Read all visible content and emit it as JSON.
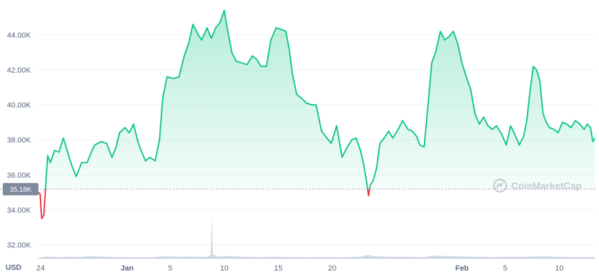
{
  "chart_data": {
    "type": "area",
    "currency_label": "USD",
    "watermark": "CoinMarketCap",
    "baseline_label": "35.18K",
    "baseline_value": 35180,
    "ylim": [
      31000,
      45600
    ],
    "y_ticks": [
      {
        "value": 32000,
        "label": "32.00K"
      },
      {
        "value": 34000,
        "label": "34.00K"
      },
      {
        "value": 36000,
        "label": "36.00K"
      },
      {
        "value": 38000,
        "label": "38.00K"
      },
      {
        "value": 40000,
        "label": "40.00K"
      },
      {
        "value": 42000,
        "label": "42.00K"
      },
      {
        "value": 44000,
        "label": "44.00K"
      }
    ],
    "x_ticks": [
      {
        "day": 0,
        "label": "24",
        "bold": false
      },
      {
        "day": 8,
        "label": "Jan",
        "bold": true
      },
      {
        "day": 12,
        "label": "5",
        "bold": false
      },
      {
        "day": 17,
        "label": "10",
        "bold": false
      },
      {
        "day": 22,
        "label": "15",
        "bold": false
      },
      {
        "day": 27,
        "label": "20",
        "bold": false
      },
      {
        "day": 39,
        "label": "Feb",
        "bold": true
      },
      {
        "day": 43,
        "label": "5",
        "bold": false
      },
      {
        "day": 48,
        "label": "10",
        "bold": false
      }
    ],
    "colors": {
      "up_line": "#16c784",
      "down_line": "#ea3943",
      "area_top": "#16c784",
      "baseline": "#7b8494",
      "volume": "#cfd6e4",
      "label_bg": "#808a9d"
    },
    "price": [
      [
        -0.2,
        35000
      ],
      [
        -0.05,
        34900
      ],
      [
        0.1,
        33500
      ],
      [
        0.3,
        33700
      ],
      [
        0.5,
        35700
      ],
      [
        0.65,
        37100
      ],
      [
        0.9,
        36700
      ],
      [
        1.3,
        37400
      ],
      [
        1.7,
        37300
      ],
      [
        2.1,
        38100
      ],
      [
        2.4,
        37500
      ],
      [
        2.9,
        36500
      ],
      [
        3.3,
        35900
      ],
      [
        3.8,
        36700
      ],
      [
        4.3,
        36700
      ],
      [
        4.7,
        37300
      ],
      [
        5.0,
        37700
      ],
      [
        5.6,
        37900
      ],
      [
        6.1,
        37800
      ],
      [
        6.6,
        37000
      ],
      [
        7.0,
        37600
      ],
      [
        7.3,
        38400
      ],
      [
        7.8,
        38700
      ],
      [
        8.2,
        38400
      ],
      [
        8.6,
        38900
      ],
      [
        9.0,
        37900
      ],
      [
        9.3,
        37400
      ],
      [
        9.7,
        36800
      ],
      [
        10.1,
        37000
      ],
      [
        10.6,
        36800
      ],
      [
        11.0,
        38000
      ],
      [
        11.3,
        40400
      ],
      [
        11.7,
        41600
      ],
      [
        12.3,
        41500
      ],
      [
        12.8,
        41600
      ],
      [
        13.3,
        42800
      ],
      [
        13.7,
        43500
      ],
      [
        14.1,
        44600
      ],
      [
        14.5,
        44100
      ],
      [
        14.9,
        43700
      ],
      [
        15.4,
        44400
      ],
      [
        15.8,
        43800
      ],
      [
        16.2,
        44400
      ],
      [
        16.6,
        44700
      ],
      [
        17.0,
        45400
      ],
      [
        17.3,
        44300
      ],
      [
        17.7,
        43000
      ],
      [
        18.1,
        42500
      ],
      [
        18.6,
        42400
      ],
      [
        19.1,
        42300
      ],
      [
        19.6,
        42800
      ],
      [
        20.0,
        42600
      ],
      [
        20.4,
        42200
      ],
      [
        20.9,
        42200
      ],
      [
        21.3,
        43700
      ],
      [
        21.8,
        44400
      ],
      [
        22.3,
        44300
      ],
      [
        22.7,
        44200
      ],
      [
        23.0,
        43200
      ],
      [
        23.3,
        41800
      ],
      [
        23.7,
        40600
      ],
      [
        24.1,
        40400
      ],
      [
        24.6,
        40100
      ],
      [
        25.1,
        40000
      ],
      [
        25.5,
        40000
      ],
      [
        26.0,
        38500
      ],
      [
        26.5,
        38100
      ],
      [
        26.9,
        37800
      ],
      [
        27.4,
        38800
      ],
      [
        27.9,
        37000
      ],
      [
        28.3,
        37500
      ],
      [
        28.8,
        38000
      ],
      [
        29.2,
        38100
      ],
      [
        29.6,
        37400
      ],
      [
        29.9,
        36600
      ],
      [
        30.2,
        35500
      ],
      [
        30.35,
        34800
      ],
      [
        30.5,
        35400
      ],
      [
        30.8,
        35700
      ],
      [
        31.1,
        36400
      ],
      [
        31.4,
        37800
      ],
      [
        31.8,
        38100
      ],
      [
        32.2,
        38500
      ],
      [
        32.6,
        38100
      ],
      [
        33.1,
        38600
      ],
      [
        33.5,
        39100
      ],
      [
        34.0,
        38600
      ],
      [
        34.4,
        38500
      ],
      [
        34.8,
        38200
      ],
      [
        35.1,
        37700
      ],
      [
        35.5,
        37600
      ],
      [
        35.9,
        40300
      ],
      [
        36.2,
        42400
      ],
      [
        36.6,
        43100
      ],
      [
        37.0,
        44200
      ],
      [
        37.4,
        43700
      ],
      [
        37.8,
        43900
      ],
      [
        38.2,
        44200
      ],
      [
        38.6,
        43500
      ],
      [
        39.0,
        42400
      ],
      [
        39.4,
        41600
      ],
      [
        39.8,
        40900
      ],
      [
        40.2,
        39500
      ],
      [
        40.6,
        38900
      ],
      [
        41.0,
        39300
      ],
      [
        41.4,
        38800
      ],
      [
        41.8,
        38600
      ],
      [
        42.2,
        38800
      ],
      [
        42.7,
        38300
      ],
      [
        43.1,
        37700
      ],
      [
        43.5,
        38800
      ],
      [
        43.9,
        38300
      ],
      [
        44.3,
        37700
      ],
      [
        44.7,
        38200
      ],
      [
        45.0,
        39100
      ],
      [
        45.3,
        40800
      ],
      [
        45.6,
        42200
      ],
      [
        45.9,
        42000
      ],
      [
        46.2,
        41400
      ],
      [
        46.5,
        39500
      ],
      [
        46.8,
        39000
      ],
      [
        47.1,
        38700
      ],
      [
        47.5,
        38600
      ],
      [
        47.9,
        38400
      ],
      [
        48.3,
        39000
      ],
      [
        48.7,
        38900
      ],
      [
        49.1,
        38700
      ],
      [
        49.5,
        39100
      ],
      [
        49.9,
        38900
      ],
      [
        50.3,
        38600
      ],
      [
        50.6,
        38900
      ],
      [
        50.9,
        38700
      ],
      [
        51.1,
        37900
      ],
      [
        51.3,
        38100
      ]
    ],
    "volume": [
      [
        -0.2,
        0.7
      ],
      [
        0.5,
        1.6
      ],
      [
        1.5,
        1.2
      ],
      [
        2.5,
        1.4
      ],
      [
        3.5,
        1.3
      ],
      [
        4.5,
        1.8
      ],
      [
        5.5,
        1.6
      ],
      [
        6.5,
        1.3
      ],
      [
        7.5,
        1.2
      ],
      [
        8.5,
        1.1
      ],
      [
        9.5,
        1.0
      ],
      [
        10.5,
        1.2
      ],
      [
        11.5,
        1.8
      ],
      [
        12.5,
        1.5
      ],
      [
        13.5,
        1.6
      ],
      [
        14.5,
        1.5
      ],
      [
        15.5,
        1.4
      ],
      [
        15.75,
        3.0
      ],
      [
        15.85,
        28.0
      ],
      [
        15.95,
        3.0
      ],
      [
        16.5,
        1.6
      ],
      [
        17.5,
        2.0
      ],
      [
        18.5,
        1.5
      ],
      [
        19.5,
        1.3
      ],
      [
        20.5,
        1.2
      ],
      [
        21.5,
        1.4
      ],
      [
        22.5,
        1.3
      ],
      [
        23.5,
        1.2
      ],
      [
        24.5,
        1.1
      ],
      [
        25.5,
        1.2
      ],
      [
        26.5,
        1.3
      ],
      [
        27.5,
        1.1
      ],
      [
        28.5,
        1.2
      ],
      [
        29.5,
        1.4
      ],
      [
        30.2,
        2.6
      ],
      [
        30.8,
        1.9
      ],
      [
        31.5,
        1.6
      ],
      [
        32.5,
        1.5
      ],
      [
        33.5,
        1.4
      ],
      [
        34.5,
        1.3
      ],
      [
        35.5,
        1.2
      ],
      [
        36.5,
        2.2
      ],
      [
        37.5,
        1.9
      ],
      [
        38.5,
        1.7
      ],
      [
        39.5,
        1.6
      ],
      [
        40.5,
        1.4
      ],
      [
        41.5,
        1.3
      ],
      [
        42.5,
        1.3
      ],
      [
        43.5,
        1.5
      ],
      [
        44.5,
        1.4
      ],
      [
        45.5,
        1.6
      ],
      [
        46.5,
        1.8
      ],
      [
        47.5,
        1.5
      ],
      [
        48.5,
        1.3
      ],
      [
        49.5,
        1.2
      ],
      [
        50.5,
        1.3
      ],
      [
        51.3,
        1.1
      ]
    ]
  }
}
